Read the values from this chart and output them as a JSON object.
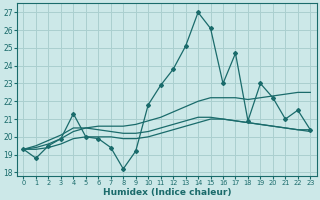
{
  "xlabel": "Humidex (Indice chaleur)",
  "bg_color": "#cce8e8",
  "grid_color": "#aacfcf",
  "line_color": "#1a6b6b",
  "x_values": [
    0,
    1,
    2,
    3,
    4,
    5,
    6,
    7,
    8,
    9,
    10,
    11,
    12,
    13,
    14,
    15,
    16,
    17,
    18,
    19,
    20,
    21,
    22,
    23
  ],
  "y_main": [
    19.3,
    18.8,
    19.5,
    19.9,
    21.3,
    20.0,
    19.9,
    19.4,
    18.2,
    19.2,
    21.8,
    22.9,
    23.8,
    25.1,
    27.0,
    26.1,
    23.0,
    24.7,
    20.9,
    23.0,
    22.2,
    21.0,
    21.5,
    20.4
  ],
  "y_smooth1": [
    19.3,
    19.5,
    19.8,
    20.1,
    20.5,
    20.5,
    20.4,
    20.3,
    20.2,
    20.2,
    20.3,
    20.5,
    20.7,
    20.9,
    21.1,
    21.1,
    21.0,
    20.9,
    20.8,
    20.7,
    20.6,
    20.5,
    20.4,
    20.4
  ],
  "y_smooth2": [
    19.3,
    19.4,
    19.6,
    19.9,
    20.3,
    20.5,
    20.6,
    20.6,
    20.6,
    20.7,
    20.9,
    21.1,
    21.4,
    21.7,
    22.0,
    22.2,
    22.2,
    22.2,
    22.1,
    22.2,
    22.3,
    22.4,
    22.5,
    22.5
  ],
  "y_smooth3": [
    19.3,
    19.3,
    19.4,
    19.6,
    19.9,
    20.0,
    20.0,
    20.0,
    19.9,
    19.9,
    20.0,
    20.2,
    20.4,
    20.6,
    20.8,
    21.0,
    21.0,
    20.9,
    20.8,
    20.7,
    20.6,
    20.5,
    20.4,
    20.3
  ],
  "ylim": [
    17.8,
    27.5
  ],
  "xlim": [
    -0.5,
    23.5
  ],
  "yticks": [
    18,
    19,
    20,
    21,
    22,
    23,
    24,
    25,
    26,
    27
  ],
  "xticks": [
    0,
    1,
    2,
    3,
    4,
    5,
    6,
    7,
    8,
    9,
    10,
    11,
    12,
    13,
    14,
    15,
    16,
    17,
    18,
    19,
    20,
    21,
    22,
    23
  ]
}
